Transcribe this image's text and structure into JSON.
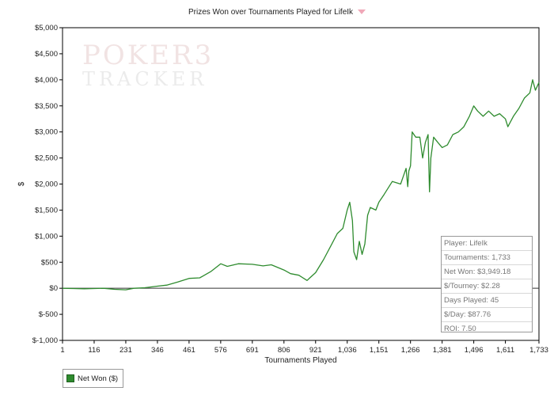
{
  "chart_data": {
    "type": "line",
    "title": "Prizes Won over Tournaments Played for LifeIk",
    "xlabel": "Tournaments Played",
    "ylabel": "$",
    "xlim": [
      1,
      1733
    ],
    "ylim": [
      -1000,
      5000
    ],
    "x_ticks": [
      1,
      116,
      231,
      346,
      461,
      576,
      691,
      806,
      921,
      1036,
      1151,
      1266,
      1381,
      1496,
      1611,
      1733
    ],
    "x_tick_labels": [
      "1",
      "116",
      "231",
      "346",
      "461",
      "576",
      "691",
      "806",
      "921",
      "1,036",
      "1,151",
      "1,266",
      "1,381",
      "1,496",
      "1,611",
      "1,733"
    ],
    "y_ticks": [
      -1000,
      -500,
      0,
      500,
      1000,
      1500,
      2000,
      2500,
      3000,
      3500,
      4000,
      4500,
      5000
    ],
    "y_tick_labels": [
      "$-1,000",
      "$-500",
      "$0",
      "$500",
      "$1,000",
      "$1,500",
      "$2,000",
      "$2,500",
      "$3,000",
      "$3,500",
      "$4,000",
      "$4,500",
      "$5,000"
    ],
    "grid": false,
    "legend_position": "bottom-left",
    "series": [
      {
        "name": "Net Won ($)",
        "color": "#2e8b2e",
        "points": [
          [
            1,
            0
          ],
          [
            40,
            -5
          ],
          [
            80,
            -10
          ],
          [
            116,
            -5
          ],
          [
            150,
            0
          ],
          [
            190,
            -20
          ],
          [
            231,
            -30
          ],
          [
            260,
            0
          ],
          [
            300,
            10
          ],
          [
            346,
            40
          ],
          [
            380,
            60
          ],
          [
            420,
            120
          ],
          [
            461,
            190
          ],
          [
            500,
            200
          ],
          [
            540,
            320
          ],
          [
            576,
            470
          ],
          [
            600,
            420
          ],
          [
            640,
            470
          ],
          [
            691,
            460
          ],
          [
            730,
            430
          ],
          [
            760,
            450
          ],
          [
            806,
            350
          ],
          [
            830,
            280
          ],
          [
            860,
            250
          ],
          [
            890,
            150
          ],
          [
            900,
            200
          ],
          [
            921,
            300
          ],
          [
            950,
            550
          ],
          [
            980,
            850
          ],
          [
            1000,
            1050
          ],
          [
            1020,
            1150
          ],
          [
            1036,
            1500
          ],
          [
            1045,
            1650
          ],
          [
            1055,
            1300
          ],
          [
            1060,
            700
          ],
          [
            1070,
            550
          ],
          [
            1080,
            900
          ],
          [
            1090,
            650
          ],
          [
            1100,
            850
          ],
          [
            1110,
            1400
          ],
          [
            1120,
            1550
          ],
          [
            1140,
            1500
          ],
          [
            1151,
            1650
          ],
          [
            1170,
            1800
          ],
          [
            1200,
            2050
          ],
          [
            1230,
            2000
          ],
          [
            1250,
            2300
          ],
          [
            1256,
            1950
          ],
          [
            1260,
            2250
          ],
          [
            1266,
            2350
          ],
          [
            1272,
            3000
          ],
          [
            1285,
            2900
          ],
          [
            1300,
            2900
          ],
          [
            1310,
            2500
          ],
          [
            1320,
            2800
          ],
          [
            1330,
            2950
          ],
          [
            1335,
            1850
          ],
          [
            1340,
            2500
          ],
          [
            1350,
            2900
          ],
          [
            1365,
            2800
          ],
          [
            1381,
            2700
          ],
          [
            1400,
            2750
          ],
          [
            1420,
            2950
          ],
          [
            1440,
            3000
          ],
          [
            1460,
            3100
          ],
          [
            1480,
            3300
          ],
          [
            1496,
            3500
          ],
          [
            1510,
            3400
          ],
          [
            1530,
            3300
          ],
          [
            1550,
            3400
          ],
          [
            1570,
            3300
          ],
          [
            1590,
            3350
          ],
          [
            1611,
            3250
          ],
          [
            1620,
            3100
          ],
          [
            1640,
            3300
          ],
          [
            1660,
            3450
          ],
          [
            1680,
            3650
          ],
          [
            1700,
            3750
          ],
          [
            1710,
            4000
          ],
          [
            1720,
            3800
          ],
          [
            1733,
            3949.18
          ]
        ]
      }
    ],
    "annotations": [
      "Player: LifeIk",
      "Tournaments: 1,733",
      "Net Won: $3,949.18",
      "$/Tourney: $2.28",
      "Days Played: 45",
      "$/Day: $87.76",
      "ROI: 7.50"
    ]
  },
  "watermark": {
    "line1": "POKER3",
    "line2": "TRACKER"
  },
  "colors": {
    "series": "#2e8b2e",
    "axis": "#000000",
    "zero_line": "#333333"
  }
}
